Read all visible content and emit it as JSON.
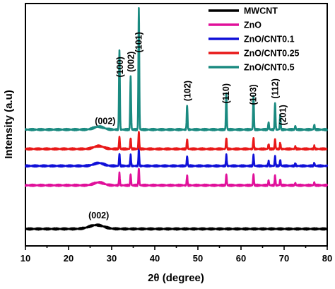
{
  "chart_data": {
    "type": "line",
    "xlabel": "2θ (degree)",
    "ylabel": "Intensity (a.u)",
    "xlim": [
      10,
      80
    ],
    "x_ticks": [
      10,
      20,
      30,
      40,
      50,
      60,
      70,
      80
    ],
    "y_ticks_shown": false,
    "legend_position": "top-right",
    "series": [
      {
        "name": "MWCNT",
        "color": "#000000",
        "baseline": 0.07,
        "peaks": []
      },
      {
        "name": "ZnO",
        "color": "#e0109a",
        "baseline": 0.25,
        "peaks": [
          [
            31.8,
            0.05
          ],
          [
            34.4,
            0.045
          ],
          [
            36.3,
            0.07
          ],
          [
            47.5,
            0.04
          ],
          [
            56.6,
            0.045
          ],
          [
            62.9,
            0.045
          ],
          [
            66.4,
            0.02
          ],
          [
            67.9,
            0.04
          ],
          [
            69.1,
            0.025
          ],
          [
            72.6,
            0.01
          ],
          [
            77.0,
            0.012
          ]
        ]
      },
      {
        "name": "ZnO/CNT0.1",
        "color": "#1010d8",
        "baseline": 0.33,
        "peaks": [
          [
            31.8,
            0.05
          ],
          [
            34.4,
            0.045
          ],
          [
            36.3,
            0.07
          ],
          [
            47.5,
            0.04
          ],
          [
            56.6,
            0.045
          ],
          [
            62.9,
            0.045
          ],
          [
            66.4,
            0.02
          ],
          [
            67.9,
            0.04
          ],
          [
            69.1,
            0.025
          ],
          [
            72.6,
            0.01
          ],
          [
            77.0,
            0.012
          ]
        ]
      },
      {
        "name": "ZnO/CNT0.25",
        "color": "#e81818",
        "baseline": 0.4,
        "peaks": [
          [
            31.8,
            0.05
          ],
          [
            34.4,
            0.045
          ],
          [
            36.3,
            0.07
          ],
          [
            47.5,
            0.04
          ],
          [
            56.6,
            0.045
          ],
          [
            62.9,
            0.045
          ],
          [
            66.4,
            0.02
          ],
          [
            67.9,
            0.04
          ],
          [
            69.1,
            0.025
          ],
          [
            72.6,
            0.01
          ],
          [
            77.0,
            0.012
          ]
        ]
      },
      {
        "name": "ZnO/CNT0.5",
        "color": "#1a8a80",
        "baseline": 0.48,
        "peaks": [
          [
            31.8,
            0.33
          ],
          [
            34.4,
            0.22
          ],
          [
            36.3,
            0.5
          ],
          [
            47.5,
            0.1
          ],
          [
            56.6,
            0.15
          ],
          [
            62.9,
            0.14
          ],
          [
            66.4,
            0.03
          ],
          [
            67.9,
            0.11
          ],
          [
            69.1,
            0.06
          ],
          [
            72.6,
            0.015
          ],
          [
            77.0,
            0.02
          ]
        ]
      }
    ],
    "annotations": [
      {
        "text": "(002)",
        "x": 28.5,
        "rotate": false,
        "ref": "top"
      },
      {
        "text": "(100)",
        "x": 31.9,
        "rotate": true,
        "ref": "top"
      },
      {
        "text": "(002)",
        "x": 34.4,
        "rotate": true,
        "ref": "top"
      },
      {
        "text": "(101)",
        "x": 36.2,
        "rotate": true,
        "ref": "top"
      },
      {
        "text": "(102)",
        "x": 47.5,
        "rotate": true,
        "ref": "top"
      },
      {
        "text": "(110)",
        "x": 56.5,
        "rotate": true,
        "ref": "top"
      },
      {
        "text": "(103)",
        "x": 62.8,
        "rotate": true,
        "ref": "top"
      },
      {
        "text": "(112)",
        "x": 67.9,
        "rotate": true,
        "ref": "top"
      },
      {
        "text": "(201)",
        "x": 69.7,
        "rotate": true,
        "ref": "top"
      },
      {
        "text": "(002)",
        "x": 27.0,
        "rotate": false,
        "ref": "mwcnt"
      }
    ]
  }
}
